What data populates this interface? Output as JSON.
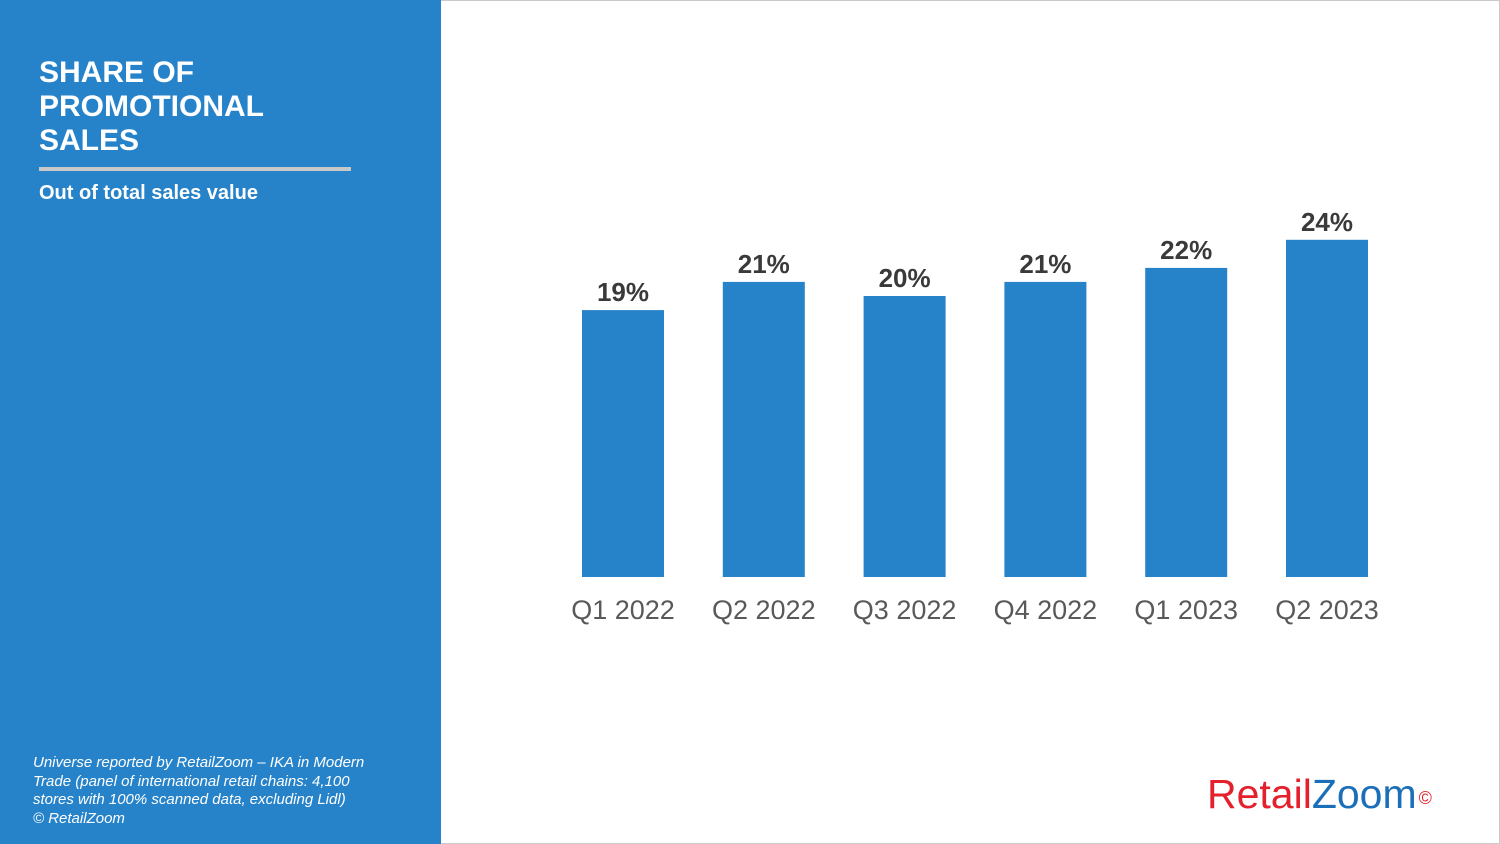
{
  "panel": {
    "title": "SHARE OF PROMOTIONAL SALES",
    "subtitle": "Out of total sales value",
    "footnote_lines": [
      "Universe reported by RetailZoom – IKA in Modern",
      "Trade (panel of international retail chains: 4,100",
      "stores with 100% scanned data, excluding Lidl)",
      "© RetailZoom"
    ]
  },
  "logo": {
    "part1": "Retail",
    "part2": "Zoom",
    "mark": "©"
  },
  "colors": {
    "accent": "#2683c9",
    "bar": "#2683c9",
    "label": "#3a3a3a",
    "tick": "#595959",
    "logo_red": "#e3202b",
    "logo_blue": "#1b6fb8"
  },
  "chart_data": {
    "type": "bar",
    "title": "SHARE OF PROMOTIONAL SALES",
    "subtitle": "Out of total sales value",
    "categories": [
      "Q1 2022",
      "Q2 2022",
      "Q3 2022",
      "Q4 2022",
      "Q1 2023",
      "Q2 2023"
    ],
    "values": [
      19,
      21,
      20,
      21,
      22,
      24
    ],
    "data_labels": [
      "19%",
      "21%",
      "20%",
      "21%",
      "22%",
      "24%"
    ],
    "unit": "%",
    "ylim": [
      0,
      24
    ],
    "grid": false,
    "legend": "none",
    "y_axis_visible": false
  }
}
